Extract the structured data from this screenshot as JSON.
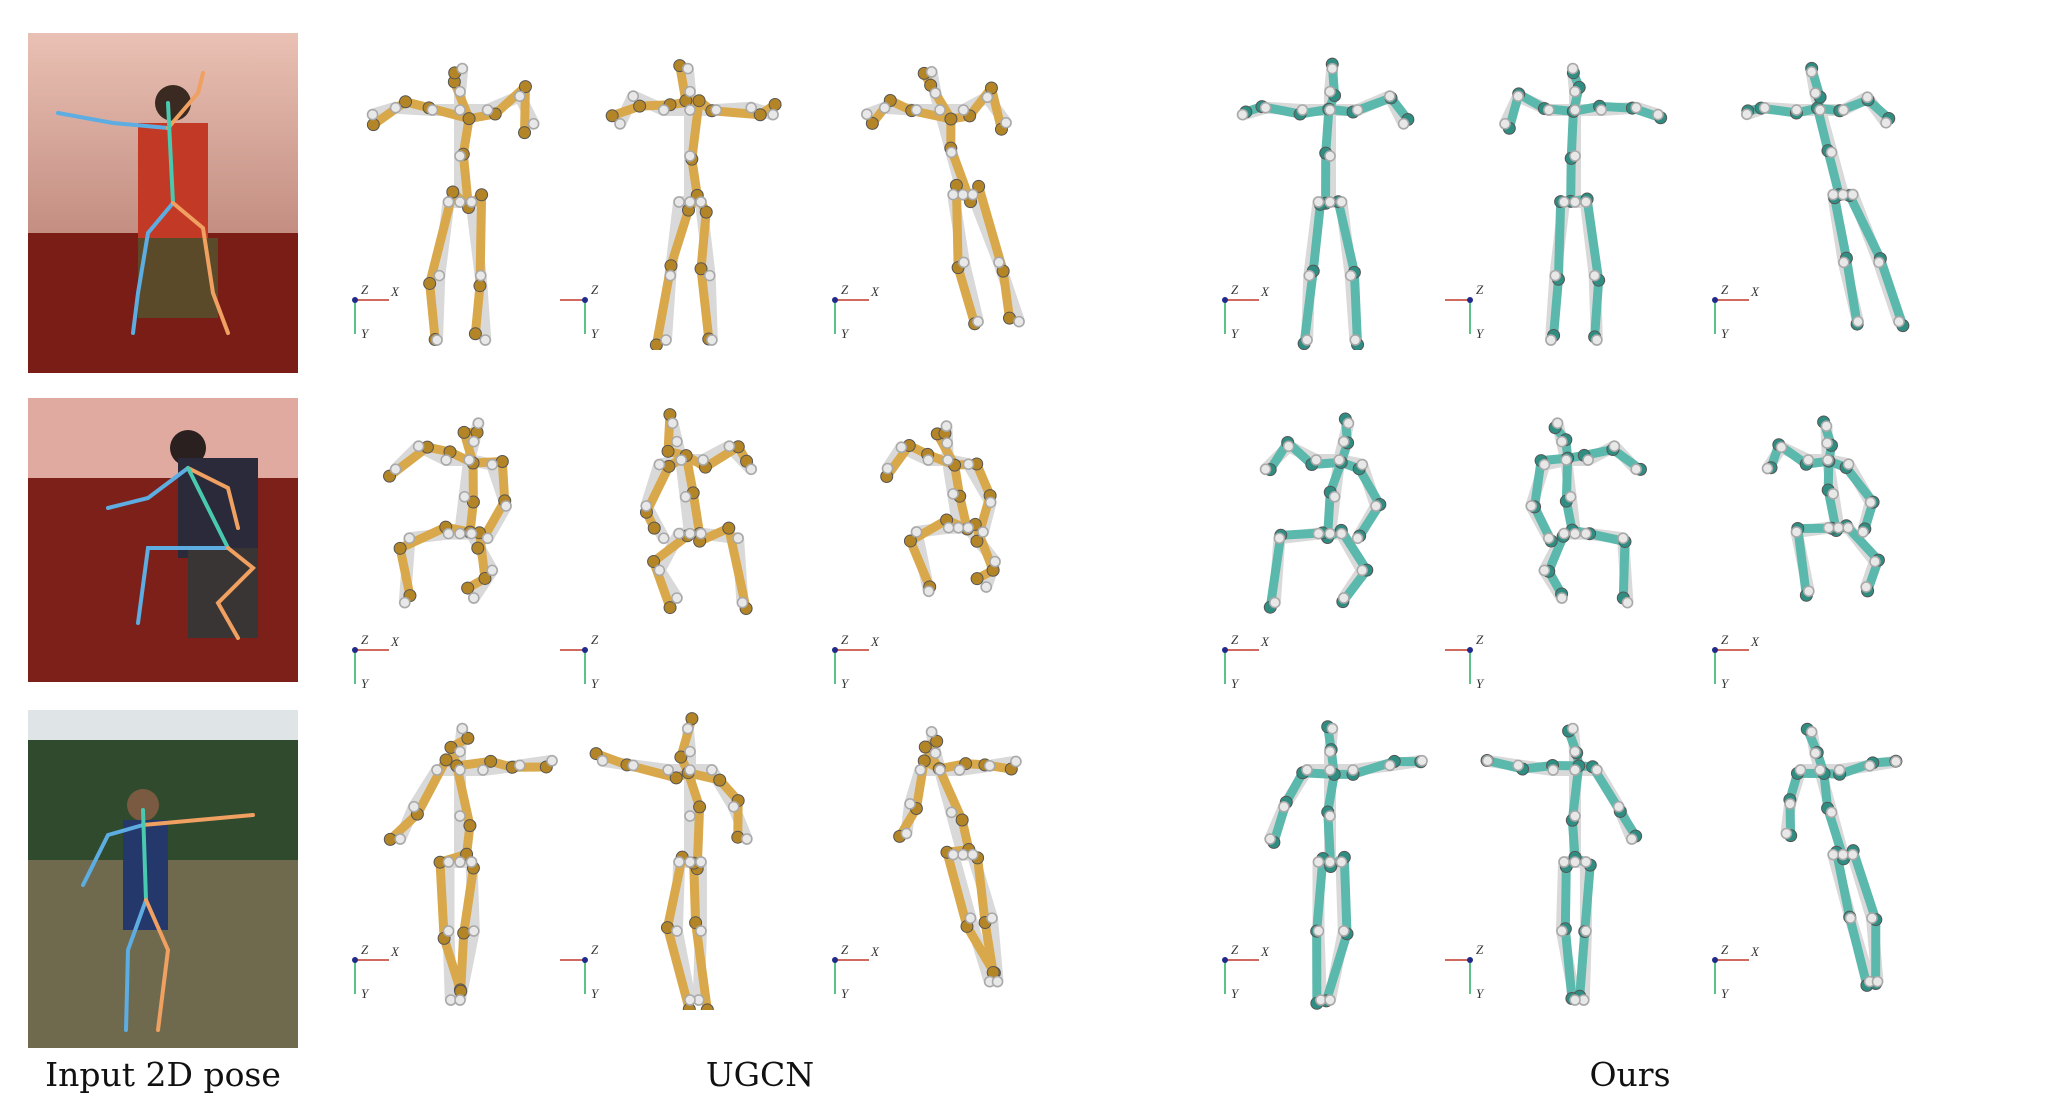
{
  "captions": {
    "input": "Input 2D pose",
    "method_a": "UGCN",
    "method_b": "Ours"
  },
  "axis_labels": {
    "x": "X",
    "y": "Y",
    "z": "Z"
  },
  "colors": {
    "ugcn_bone": "#d8a84a",
    "ugcn_joint": "#b38526",
    "ours_bone": "#5bb8ac",
    "ours_joint": "#2f8d82",
    "ground_truth_bone": "#d9d9d9",
    "ground_truth_joint": "#a8a8a8",
    "axis_x": "#c0392b",
    "axis_y": "#27ae60",
    "axis_z": "#1f2a8a",
    "overlay_left": "#5dade2",
    "overlay_right": "#f0a060",
    "overlay_torso": "#48c9b0"
  },
  "input_photos": [
    {
      "scene": "indoor-red-room",
      "subject": "standing pose with arms extended"
    },
    {
      "scene": "indoor-red-room",
      "subject": "crouching pose"
    },
    {
      "scene": "outdoor-meadow",
      "subject": "standing pose with arm raised"
    }
  ],
  "rows": 3,
  "views_per_method": 3
}
